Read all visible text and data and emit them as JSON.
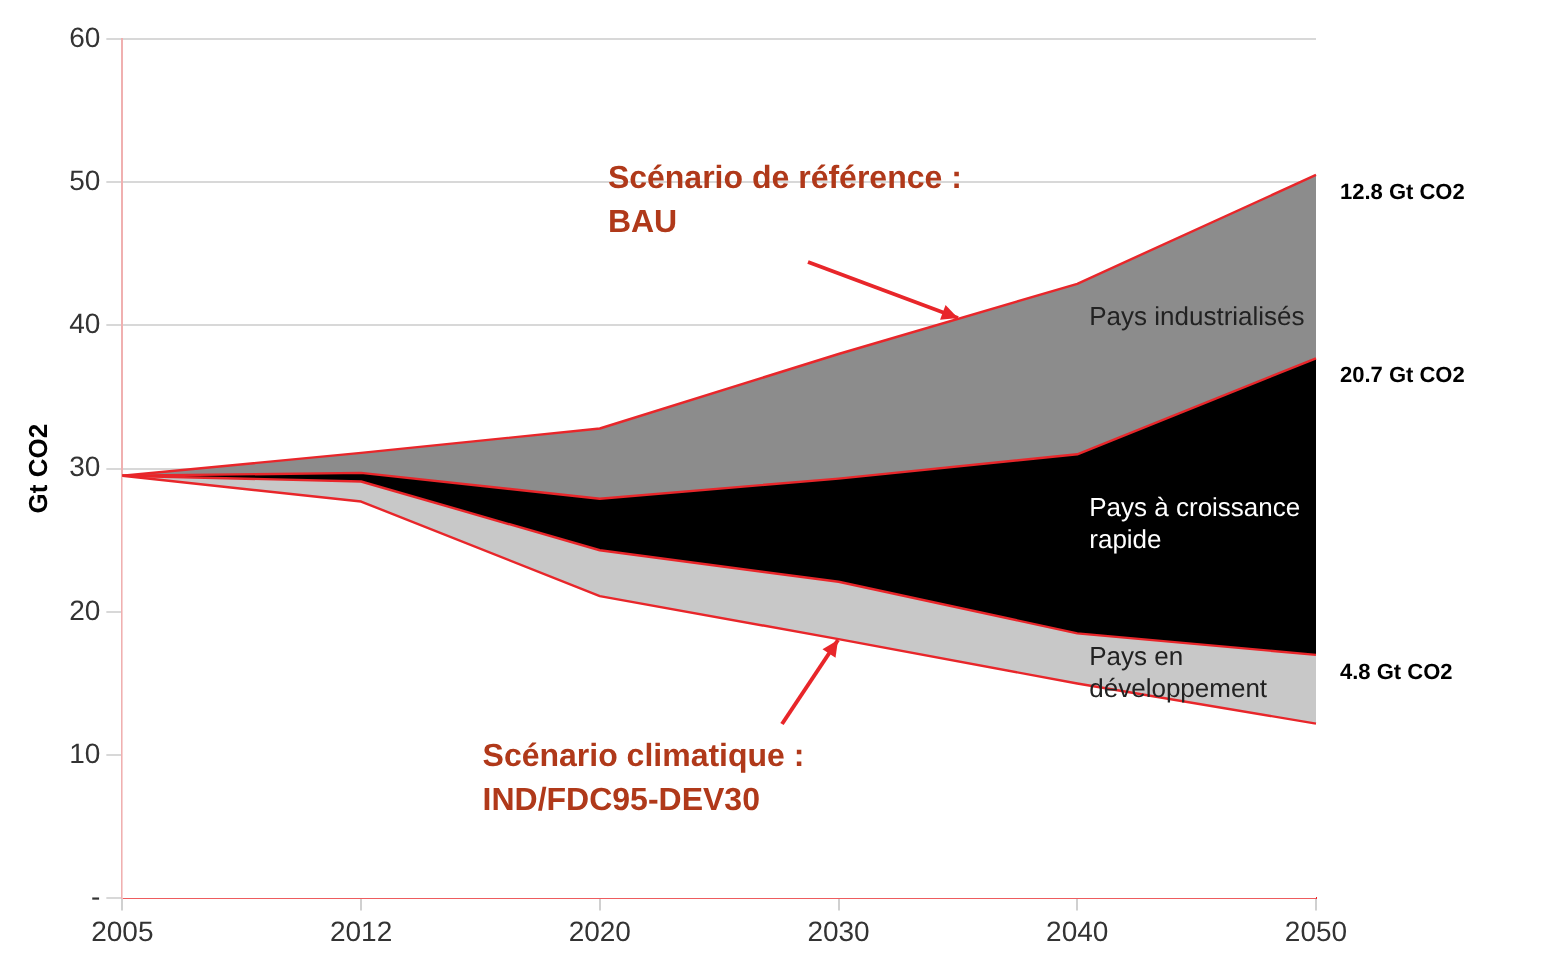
{
  "chart_data": {
    "type": "area",
    "stacked": true,
    "ylabel": "Gt CO2",
    "categories": [
      "2005",
      "2012",
      "2020",
      "2030",
      "2040",
      "2050"
    ],
    "series": [
      {
        "color": "#ffffff",
        "values": [
          29.5,
          27.7,
          21.1,
          18.1,
          15.0,
          12.2
        ]
      },
      {
        "name": "Pays en développement",
        "color": "#c8c8c8",
        "values": [
          0,
          1.4,
          3.2,
          4.0,
          3.5,
          4.8
        ],
        "value_labels": [
          null,
          null,
          null,
          null,
          null,
          "4.8 Gt CO2"
        ]
      },
      {
        "name": "Pays à croissance rapide",
        "color": "#000000",
        "values": [
          0,
          0.6,
          3.6,
          7.2,
          12.5,
          20.7
        ],
        "value_labels": [
          null,
          null,
          null,
          null,
          null,
          "20.7 Gt CO2"
        ]
      },
      {
        "name": "Pays industrialisés",
        "color": "#8c8c8c",
        "values": [
          0,
          1.4,
          4.9,
          8.7,
          11.9,
          12.8
        ],
        "value_labels": [
          null,
          null,
          null,
          null,
          null,
          "12.8 Gt CO2"
        ]
      }
    ],
    "ylim": [
      0,
      60
    ],
    "yticks": [
      {
        "value": 0,
        "label": "-"
      },
      10,
      20,
      30,
      40,
      50,
      60
    ],
    "grid": "y",
    "legend": false,
    "annotations": [
      "Scénario de référence : BAU",
      {
        "text": "Scénario climatique : IND/FDC95-DEV30",
        "x": "2030",
        "y": 18.1
      }
    ]
  }
}
